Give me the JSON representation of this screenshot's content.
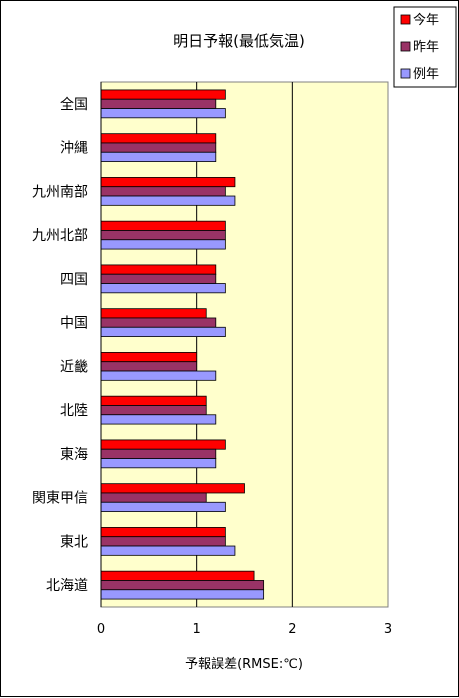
{
  "chart_data": {
    "type": "bar",
    "orientation": "horizontal",
    "title": "明日予報(最低気温)",
    "xlabel": "予報誤差(RMSE:℃)",
    "ylabel": "",
    "xlim": [
      0,
      3
    ],
    "xticks": [
      "0",
      "1",
      "2",
      "3"
    ],
    "grid": "vertical major gridlines",
    "legend_position": "top-right",
    "plot_background": "#FFFFCC",
    "categories": [
      "全国",
      "沖縄",
      "九州南部",
      "九州北部",
      "四国",
      "中国",
      "近畿",
      "北陸",
      "東海",
      "関東甲信",
      "東北",
      "北海道"
    ],
    "series": [
      {
        "name": "今年",
        "color": "#FF0000",
        "values": [
          1.3,
          1.2,
          1.4,
          1.3,
          1.2,
          1.1,
          1.0,
          1.1,
          1.3,
          1.5,
          1.3,
          1.6
        ]
      },
      {
        "name": "昨年",
        "color": "#993366",
        "values": [
          1.2,
          1.2,
          1.3,
          1.3,
          1.2,
          1.2,
          1.0,
          1.1,
          1.2,
          1.1,
          1.3,
          1.7
        ]
      },
      {
        "name": "例年",
        "color": "#9999FF",
        "values": [
          1.3,
          1.2,
          1.4,
          1.3,
          1.3,
          1.3,
          1.2,
          1.2,
          1.2,
          1.3,
          1.4,
          1.7
        ]
      }
    ]
  }
}
